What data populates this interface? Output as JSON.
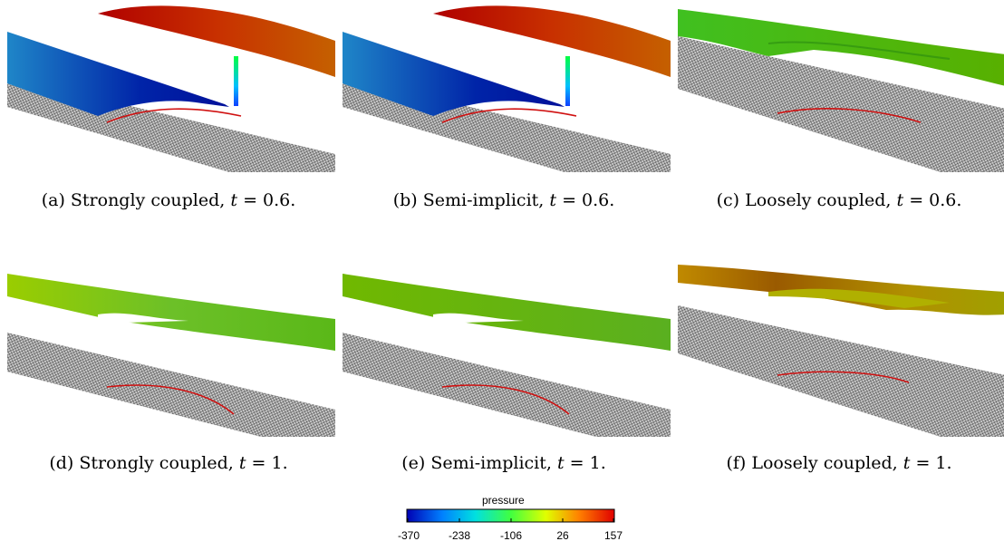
{
  "panels": [
    {
      "caption_prefix": "(a) Strongly coupled,",
      "var": "t",
      "value": "= 0.6."
    },
    {
      "caption_prefix": "(b) Semi-implicit,",
      "var": "t",
      "value": "= 0.6."
    },
    {
      "caption_prefix": "(c) Loosely coupled,",
      "var": "t",
      "value": "= 0.6."
    },
    {
      "caption_prefix": "(d) Strongly coupled,",
      "var": "t",
      "value": "= 1."
    },
    {
      "caption_prefix": "(e) Semi-implicit,",
      "var": "t",
      "value": "= 1."
    },
    {
      "caption_prefix": "(f) Loosely coupled,",
      "var": "t",
      "value": "= 1."
    }
  ],
  "colorbar": {
    "title": "pressure",
    "ticks": [
      "-370",
      "-238",
      "-106",
      "26",
      "157"
    ],
    "min": -370,
    "max": 157,
    "colors": [
      "#0000b4",
      "#0080ff",
      "#00e0e0",
      "#40ff40",
      "#e0ff00",
      "#ff8000",
      "#e00000"
    ]
  }
}
